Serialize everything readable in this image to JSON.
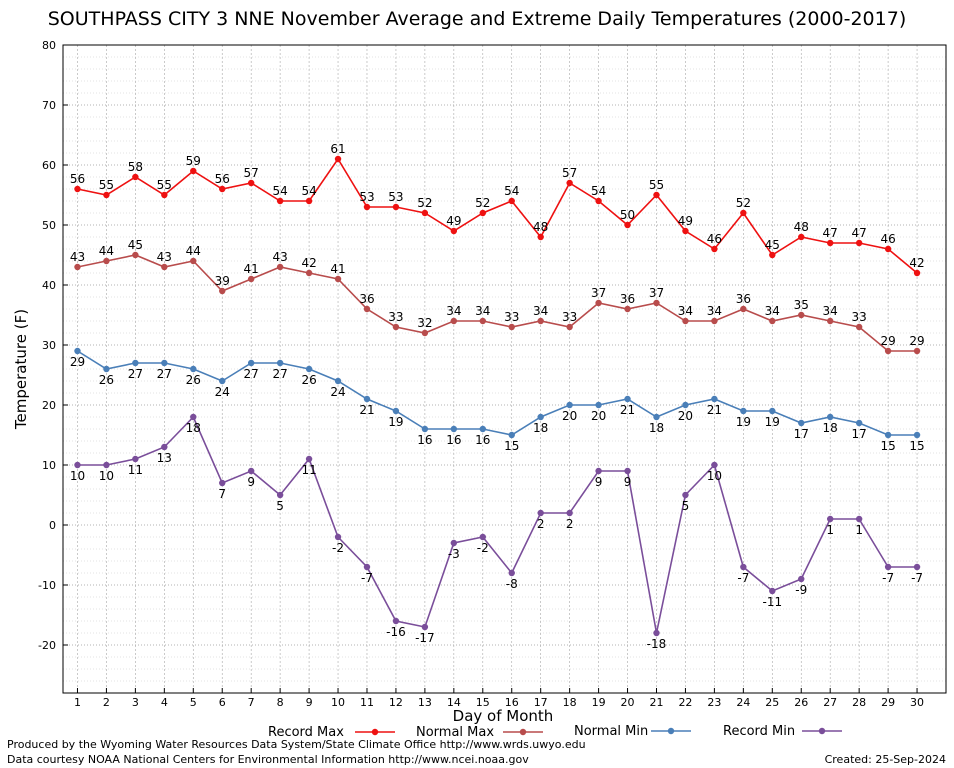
{
  "chart_data": {
    "type": "line",
    "title": "SOUTHPASS CITY 3 NNE November Average and Extreme Daily Temperatures (2000-2017)",
    "xlabel": "Day of Month",
    "ylabel": "Temperature (F)",
    "x": [
      1,
      2,
      3,
      4,
      5,
      6,
      7,
      8,
      9,
      10,
      11,
      12,
      13,
      14,
      15,
      16,
      17,
      18,
      19,
      20,
      21,
      22,
      23,
      24,
      25,
      26,
      27,
      28,
      29,
      30
    ],
    "ylim": [
      -28,
      80
    ],
    "yticks": [
      -20,
      -10,
      0,
      10,
      20,
      30,
      40,
      50,
      60,
      70,
      80
    ],
    "grid": true,
    "legend_position": "bottom",
    "series": [
      {
        "name": "Record Max",
        "color": "#ee1111",
        "values": [
          56,
          55,
          58,
          55,
          59,
          56,
          57,
          54,
          54,
          61,
          53,
          53,
          52,
          49,
          52,
          54,
          48,
          57,
          54,
          50,
          55,
          49,
          46,
          52,
          45,
          48,
          47,
          47,
          46,
          42
        ]
      },
      {
        "name": "Normal Max",
        "color": "#b84c4c",
        "values": [
          43,
          44,
          45,
          43,
          44,
          39,
          41,
          43,
          42,
          41,
          36,
          33,
          32,
          34,
          34,
          33,
          34,
          33,
          37,
          36,
          37,
          34,
          34,
          36,
          34,
          35,
          34,
          33,
          29,
          29
        ]
      },
      {
        "name": "Normal Min",
        "color": "#4a7fb8",
        "values": [
          29,
          26,
          27,
          27,
          26,
          24,
          27,
          27,
          26,
          24,
          21,
          19,
          16,
          16,
          16,
          15,
          18,
          20,
          20,
          21,
          18,
          20,
          21,
          19,
          19,
          17,
          18,
          17,
          15,
          15
        ]
      },
      {
        "name": "Record Min",
        "color": "#7a4e9a",
        "values": [
          10,
          10,
          11,
          13,
          18,
          7,
          9,
          5,
          11,
          -2,
          -7,
          -16,
          -17,
          -3,
          -2,
          -8,
          2,
          2,
          9,
          9,
          -18,
          5,
          10,
          -7,
          -11,
          -9,
          1,
          1,
          -7,
          -7
        ]
      }
    ]
  },
  "footer": {
    "line1": "Produced by the Wyoming Water Resources Data System/State Climate Office http://www.wrds.uwyo.edu",
    "line2": "Data courtesy NOAA National Centers for Environmental Information http://www.ncei.noaa.gov",
    "created": "Created:  25-Sep-2024"
  }
}
